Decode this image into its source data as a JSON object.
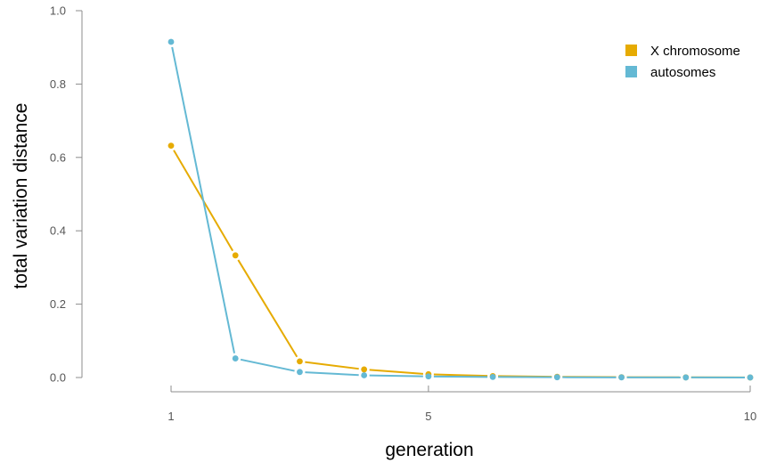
{
  "chart_data": {
    "type": "line",
    "xlabel": "generation",
    "ylabel": "total variation distance",
    "x": [
      1,
      2,
      3,
      4,
      5,
      6,
      7,
      8,
      9,
      10
    ],
    "xticks": [
      1,
      5,
      10
    ],
    "xtick_labels": [
      "1",
      "5",
      "10"
    ],
    "xlim": [
      1,
      10
    ],
    "ylim": [
      0,
      1.0
    ],
    "yticks": [
      0,
      0.2,
      0.4,
      0.6,
      0.8,
      1.0
    ],
    "ytick_labels": [
      "0.0",
      "0.2",
      "0.4",
      "0.6",
      "0.8",
      "1.0"
    ],
    "grid": false,
    "legend_position": "top-right",
    "series": [
      {
        "name": "X chromosome",
        "color": "#E6AB02",
        "values": [
          0.632,
          0.333,
          0.044,
          0.022,
          0.009,
          0.004,
          0.002,
          0.001,
          0.0005,
          0.0002
        ]
      },
      {
        "name": "autosomes",
        "color": "#64B9D4",
        "values": [
          0.915,
          0.052,
          0.015,
          0.006,
          0.003,
          0.0015,
          0.0008,
          0.0004,
          0.0002,
          0.0001
        ]
      }
    ]
  }
}
